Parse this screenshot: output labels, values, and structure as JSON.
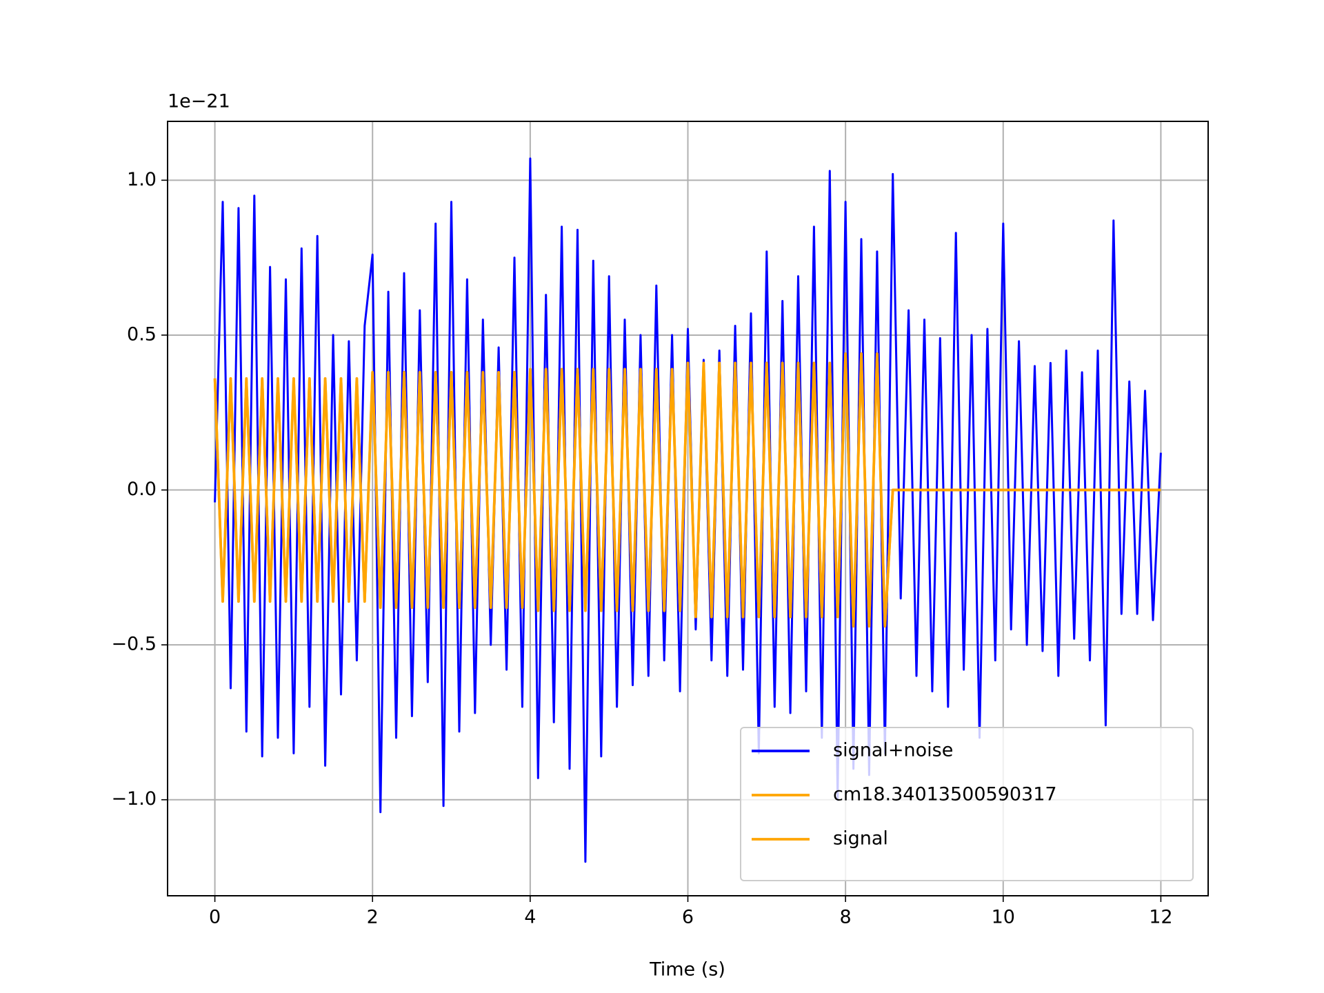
{
  "chart_data": {
    "type": "line",
    "x_label": "Time (s)",
    "y_offset_label": "1e−21",
    "xlim": [
      -0.6,
      12.6
    ],
    "ylim": [
      -1.31,
      1.19
    ],
    "xticks": [
      0,
      2,
      4,
      6,
      8,
      10,
      12
    ],
    "yticks": [
      {
        "value": -1.0,
        "label": "−1.0"
      },
      {
        "value": -0.5,
        "label": "−0.5"
      },
      {
        "value": 0.0,
        "label": "0.0"
      },
      {
        "value": 0.5,
        "label": "0.5"
      },
      {
        "value": 1.0,
        "label": "1.0"
      }
    ],
    "grid": true,
    "legend": "lower right",
    "x": [
      0.0,
      0.1,
      0.2,
      0.3,
      0.4,
      0.5,
      0.6,
      0.7,
      0.8,
      0.9,
      1.0,
      1.1,
      1.2,
      1.3,
      1.4,
      1.5,
      1.6,
      1.7,
      1.8,
      1.9,
      2.0,
      2.1,
      2.2,
      2.3,
      2.4,
      2.5,
      2.6,
      2.7,
      2.8,
      2.9,
      3.0,
      3.1,
      3.2,
      3.3,
      3.4,
      3.5,
      3.6,
      3.7,
      3.8,
      3.9,
      4.0,
      4.1,
      4.2,
      4.3,
      4.4,
      4.5,
      4.6,
      4.7,
      4.8,
      4.9,
      5.0,
      5.1,
      5.2,
      5.3,
      5.4,
      5.5,
      5.6,
      5.7,
      5.8,
      5.9,
      6.0,
      6.1,
      6.2,
      6.3,
      6.4,
      6.5,
      6.6,
      6.7,
      6.8,
      6.9,
      7.0,
      7.1,
      7.2,
      7.3,
      7.4,
      7.5,
      7.6,
      7.7,
      7.8,
      7.9,
      8.0,
      8.1,
      8.2,
      8.3,
      8.4,
      8.5,
      8.6,
      8.7,
      8.8,
      8.9,
      9.0,
      9.1,
      9.2,
      9.3,
      9.4,
      9.5,
      9.6,
      9.7,
      9.8,
      9.9,
      10.0,
      10.1,
      10.2,
      10.3,
      10.4,
      10.5,
      10.6,
      10.7,
      10.8,
      10.9,
      11.0,
      11.1,
      11.2,
      11.3,
      11.4,
      11.5,
      11.6,
      11.7,
      11.8,
      11.9,
      12.0
    ],
    "series": [
      {
        "name": "signal+noise",
        "color": "#0000ff",
        "values": [
          -0.04,
          0.93,
          -0.64,
          0.91,
          -0.78,
          0.95,
          -0.86,
          0.72,
          -0.8,
          0.68,
          -0.85,
          0.78,
          -0.7,
          0.82,
          -0.89,
          0.5,
          -0.66,
          0.48,
          -0.55,
          0.53,
          0.76,
          -1.04,
          0.64,
          -0.8,
          0.7,
          -0.73,
          0.58,
          -0.62,
          0.86,
          -1.02,
          0.93,
          -0.78,
          0.68,
          -0.72,
          0.55,
          -0.5,
          0.46,
          -0.58,
          0.75,
          -0.7,
          1.07,
          -0.93,
          0.63,
          -0.75,
          0.85,
          -0.9,
          0.84,
          -1.2,
          0.74,
          -0.86,
          0.69,
          -0.7,
          0.55,
          -0.63,
          0.5,
          -0.6,
          0.66,
          -0.55,
          0.5,
          -0.65,
          0.52,
          -0.45,
          0.42,
          -0.55,
          0.45,
          -0.6,
          0.53,
          -0.58,
          0.57,
          -0.85,
          0.77,
          -0.7,
          0.61,
          -0.72,
          0.69,
          -0.65,
          0.85,
          -0.8,
          1.03,
          -1.0,
          0.93,
          -0.9,
          0.81,
          -0.92,
          0.77,
          -0.85,
          1.02,
          -0.35,
          0.58,
          -0.6,
          0.55,
          -0.65,
          0.49,
          -0.7,
          0.83,
          -0.58,
          0.5,
          -0.8,
          0.52,
          -0.55,
          0.86,
          -0.45,
          0.48,
          -0.5,
          0.4,
          -0.52,
          0.41,
          -0.6,
          0.45,
          -0.48,
          0.38,
          -0.55,
          0.45,
          -0.76,
          0.87,
          -0.4,
          0.35,
          -0.4,
          0.32,
          -0.42,
          0.12
        ]
      },
      {
        "name": "cm18.34013500590317",
        "color": "#ffa500",
        "values": [
          0.36,
          -0.36,
          0.36,
          -0.36,
          0.36,
          -0.36,
          0.36,
          -0.36,
          0.36,
          -0.36,
          0.36,
          -0.36,
          0.36,
          -0.36,
          0.36,
          -0.36,
          0.36,
          -0.36,
          0.36,
          -0.36,
          0.38,
          -0.38,
          0.38,
          -0.38,
          0.38,
          -0.38,
          0.38,
          -0.38,
          0.38,
          -0.38,
          0.38,
          -0.38,
          0.38,
          -0.38,
          0.38,
          -0.38,
          0.38,
          -0.38,
          0.38,
          -0.38,
          0.39,
          -0.39,
          0.39,
          -0.39,
          0.39,
          -0.39,
          0.39,
          -0.39,
          0.39,
          -0.39,
          0.39,
          -0.39,
          0.39,
          -0.39,
          0.39,
          -0.39,
          0.39,
          -0.39,
          0.39,
          -0.39,
          0.41,
          -0.41,
          0.41,
          -0.41,
          0.41,
          -0.41,
          0.41,
          -0.41,
          0.41,
          -0.41,
          0.41,
          -0.41,
          0.41,
          -0.41,
          0.41,
          -0.41,
          0.41,
          -0.41,
          0.41,
          -0.41,
          0.44,
          -0.44,
          0.44,
          -0.44,
          0.44,
          -0.44,
          0,
          0,
          0,
          0,
          0,
          0,
          0,
          0,
          0,
          0,
          0,
          0,
          0,
          0,
          0,
          0,
          0,
          0,
          0,
          0,
          0,
          0,
          0,
          0,
          0,
          0,
          0,
          0,
          0,
          0,
          0,
          0,
          0,
          0,
          0
        ]
      },
      {
        "name": "signal",
        "color": "#ffa500",
        "values": [
          0.36,
          -0.36,
          0.36,
          -0.36,
          0.36,
          -0.36,
          0.36,
          -0.36,
          0.36,
          -0.36,
          0.36,
          -0.36,
          0.36,
          -0.36,
          0.36,
          -0.36,
          0.36,
          -0.36,
          0.36,
          -0.36,
          0.38,
          -0.38,
          0.38,
          -0.38,
          0.38,
          -0.38,
          0.38,
          -0.38,
          0.38,
          -0.38,
          0.38,
          -0.38,
          0.38,
          -0.38,
          0.38,
          -0.38,
          0.38,
          -0.38,
          0.38,
          -0.38,
          0.39,
          -0.39,
          0.39,
          -0.39,
          0.39,
          -0.39,
          0.39,
          -0.39,
          0.39,
          -0.39,
          0.39,
          -0.39,
          0.39,
          -0.39,
          0.39,
          -0.39,
          0.39,
          -0.39,
          0.39,
          -0.39,
          0.41,
          -0.41,
          0.41,
          -0.41,
          0.41,
          -0.41,
          0.41,
          -0.41,
          0.41,
          -0.41,
          0.41,
          -0.41,
          0.41,
          -0.41,
          0.41,
          -0.41,
          0.41,
          -0.41,
          0.41,
          -0.41,
          0.44,
          -0.44,
          0.44,
          -0.44,
          0.44,
          -0.44,
          0,
          0,
          0,
          0,
          0,
          0,
          0,
          0,
          0,
          0,
          0,
          0,
          0,
          0,
          0,
          0,
          0,
          0,
          0,
          0,
          0,
          0,
          0,
          0,
          0,
          0,
          0,
          0,
          0,
          0,
          0,
          0,
          0,
          0,
          0
        ]
      }
    ]
  }
}
